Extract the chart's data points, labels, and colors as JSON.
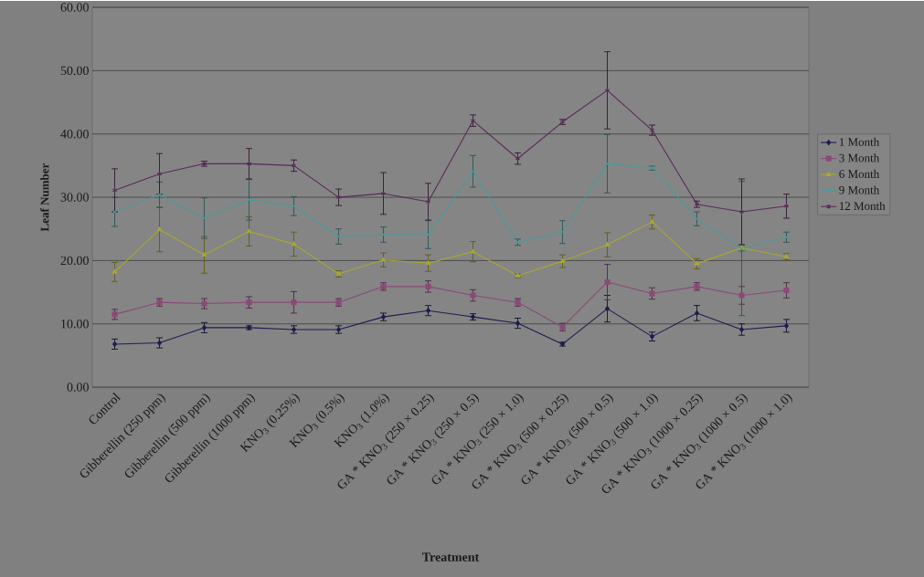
{
  "chart_data": {
    "type": "line",
    "xlabel": "Treatment",
    "ylabel": "Leaf Number",
    "categories": [
      "Control",
      "Gibberellin (250 ppm)",
      "Gibberellin (500 ppm)",
      "Gibberellin (1000 ppm)",
      "KNO$_{3}$ (0.25%)",
      "KNO$_{3}$ (0.5%)",
      "KNO$_{3}$ (1.0%)",
      "GA * KNO$_{3}$ (250 × 0.25)",
      "GA * KNO$_{3}$ (250 × 0.5)",
      "GA * KNO$_{3}$ (250 × 1.0)",
      "GA * KNO$_{3}$ (500 × 0.25)",
      "GA * KNO$_{3}$ (500 × 0.5)",
      "GA * KNO$_{3}$ (500 × 1.0)",
      "GA * KNO$_{3}$ (1000 × 0.25)",
      "GA * KNO$_{3}$ (1000 × 0.5)",
      "GA * KNO$_{3}$ (1000 × 1.0)"
    ],
    "series": [
      {
        "name": "1 Month",
        "color": "#1c1c50",
        "marker": "diamond",
        "values": [
          6.8,
          7.0,
          9.4,
          9.4,
          9.1,
          9.1,
          11.1,
          12.1,
          11.1,
          10.1,
          6.8,
          12.4,
          8.0,
          11.7,
          9.1,
          9.7
        ],
        "errors": [
          0.8,
          0.8,
          0.8,
          0.3,
          0.6,
          0.6,
          0.6,
          0.8,
          0.5,
          0.8,
          0.3,
          2.1,
          0.7,
          1.2,
          0.9,
          1.0
        ]
      },
      {
        "name": "3 Month",
        "color": "#8a4a78",
        "marker": "square",
        "values": [
          11.5,
          13.4,
          13.2,
          13.4,
          13.4,
          13.4,
          15.9,
          15.9,
          14.5,
          13.4,
          9.5,
          16.6,
          14.8,
          15.9,
          14.5,
          15.3
        ],
        "errors": [
          0.8,
          0.6,
          0.8,
          0.9,
          1.7,
          0.6,
          0.6,
          0.9,
          0.9,
          0.6,
          0.6,
          2.8,
          0.9,
          0.6,
          1.4,
          1.2
        ]
      },
      {
        "name": "6 Month",
        "color": "#a8a832",
        "marker": "triangle",
        "values": [
          18.2,
          24.9,
          20.9,
          24.6,
          22.6,
          17.9,
          20.1,
          19.6,
          21.4,
          17.6,
          19.9,
          22.5,
          26.1,
          19.5,
          22.0,
          20.6
        ],
        "errors": [
          1.5,
          3.5,
          2.9,
          2.3,
          1.9,
          0.5,
          1.1,
          1.3,
          1.6,
          0.3,
          1.0,
          1.9,
          1.1,
          0.8,
          0.5,
          0.5
        ]
      },
      {
        "name": "9 Month",
        "color": "#4a9a9a",
        "marker": "cross",
        "values": [
          27.7,
          30.4,
          26.7,
          29.6,
          28.6,
          23.8,
          24.1,
          24.1,
          34.1,
          22.9,
          24.5,
          35.3,
          34.6,
          26.6,
          21.9,
          23.7
        ],
        "errors": [
          2.3,
          2.0,
          3.2,
          3.2,
          1.5,
          1.2,
          1.2,
          2.2,
          2.5,
          0.5,
          1.8,
          4.6,
          0.3,
          1.1,
          10.6,
          0.8
        ]
      },
      {
        "name": "12 Month",
        "color": "#5a2a58",
        "marker": "cross",
        "values": [
          31.1,
          33.7,
          35.3,
          35.3,
          35.0,
          30.0,
          30.6,
          29.3,
          42.1,
          36.1,
          41.9,
          46.9,
          40.6,
          28.9,
          27.7,
          28.6
        ],
        "errors": [
          3.4,
          3.2,
          0.4,
          2.4,
          0.9,
          1.3,
          3.3,
          2.9,
          0.9,
          0.9,
          0.4,
          6.1,
          0.8,
          0.5,
          5.2,
          1.9
        ]
      }
    ],
    "ylim": [
      0,
      60
    ],
    "yticks": [
      {
        "value": 0,
        "label": "0.00"
      },
      {
        "value": 10,
        "label": "10.00"
      },
      {
        "value": 20,
        "label": "20.00"
      },
      {
        "value": 30,
        "label": "30.00"
      },
      {
        "value": 40,
        "label": "40.00"
      },
      {
        "value": 50,
        "label": "50.00"
      },
      {
        "value": 60,
        "label": "60.00"
      }
    ],
    "grid": "y",
    "legend": "right",
    "line_style": "solid"
  }
}
